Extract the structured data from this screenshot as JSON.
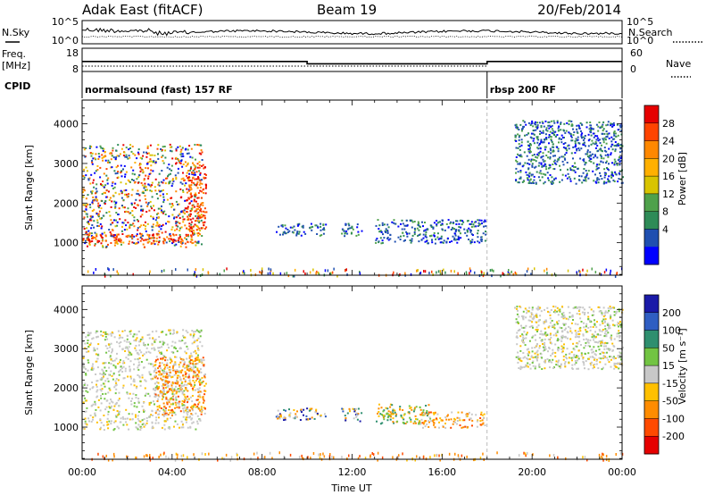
{
  "header": {
    "station": "Adak East (fitACF)",
    "beam": "Beam 19",
    "date": "20/Feb/2014"
  },
  "meta_panels": {
    "nsky_label": "N.Sky",
    "nsearch_label": "N.Search",
    "freq_label_1": "Freq.",
    "freq_label_2": "[MHz]",
    "nave_label": "Nave",
    "cpid_label": "CPID",
    "noise_ticks_left": [
      "10^5",
      "10^0"
    ],
    "noise_ticks_right": [
      "10^5",
      "10^0"
    ],
    "freq_ticks": [
      "18",
      "8"
    ],
    "nave_ticks": [
      "60",
      "0"
    ],
    "modes": [
      {
        "label": "normalsound (fast) 157 RF",
        "start": 0,
        "end": 18
      },
      {
        "label": "rbsp 200 RF",
        "start": 18,
        "end": 24
      }
    ],
    "freq_series": [
      {
        "start": 0,
        "end": 10,
        "value": 12.3
      },
      {
        "start": 10,
        "end": 18,
        "value": 11.3
      },
      {
        "start": 18,
        "end": 24,
        "value": 12.3
      }
    ]
  },
  "chart_data": [
    {
      "type": "scatter",
      "name": "power",
      "ylabel": "Slant Range [km]",
      "xlabel": "Time UT",
      "xlim": [
        0,
        24
      ],
      "ylim": [
        180,
        4600
      ],
      "x_ticks": [
        "00:00",
        "04:00",
        "08:00",
        "12:00",
        "16:00",
        "20:00",
        "00:00"
      ],
      "y_ticks": [
        1000,
        2000,
        3000,
        4000
      ],
      "colorbar": {
        "label": "Power [dB]",
        "ticks": [
          "28",
          "24",
          "20",
          "16",
          "12",
          "8",
          "4"
        ],
        "colors": [
          "#e60000",
          "#ff4400",
          "#ff8800",
          "#ffb000",
          "#d8c400",
          "#4fa14b",
          "#2e8b57",
          "#1f4fb0",
          "#0000ff"
        ]
      },
      "regions": [
        {
          "t0": 0.0,
          "t1": 5.3,
          "r0": 900,
          "r1": 3500,
          "level": "mixed"
        },
        {
          "t0": 0.0,
          "t1": 5.0,
          "r0": 1000,
          "r1": 1250,
          "level": "high"
        },
        {
          "t0": 4.6,
          "t1": 5.5,
          "r0": 1300,
          "r1": 3000,
          "level": "high"
        },
        {
          "t0": 8.6,
          "t1": 10.8,
          "r0": 1200,
          "r1": 1500,
          "level": "low"
        },
        {
          "t0": 11.5,
          "t1": 12.4,
          "r0": 1150,
          "r1": 1500,
          "level": "low"
        },
        {
          "t0": 13.0,
          "t1": 17.9,
          "r0": 1000,
          "r1": 1600,
          "level": "low"
        },
        {
          "t0": 19.2,
          "t1": 24.0,
          "r0": 2500,
          "r1": 4100,
          "level": "low"
        }
      ]
    },
    {
      "type": "scatter",
      "name": "velocity",
      "ylabel": "Slant Range [km]",
      "xlabel": "Time UT",
      "xlim": [
        0,
        24
      ],
      "ylim": [
        180,
        4600
      ],
      "x_ticks": [
        "00:00",
        "04:00",
        "08:00",
        "12:00",
        "16:00",
        "20:00",
        "00:00"
      ],
      "y_ticks": [
        1000,
        2000,
        3000,
        4000
      ],
      "colorbar": {
        "label": "Velocity [m s⁻¹]",
        "ticks": [
          "200",
          "100",
          "50",
          "15",
          "-15",
          "-50",
          "-100",
          "-200"
        ],
        "colors": [
          "#1a1aa8",
          "#2f5ec2",
          "#2f8f6f",
          "#72c443",
          "#c8c8c8",
          "#ffc000",
          "#ff8c00",
          "#ff4a00",
          "#e60000"
        ]
      },
      "regions": [
        {
          "t0": 0.0,
          "t1": 5.3,
          "r0": 950,
          "r1": 3500,
          "level": "grey"
        },
        {
          "t0": 3.2,
          "t1": 5.5,
          "r0": 1300,
          "r1": 2800,
          "level": "orange"
        },
        {
          "t0": 8.6,
          "t1": 10.8,
          "r0": 1200,
          "r1": 1500,
          "level": "mixed"
        },
        {
          "t0": 11.5,
          "t1": 12.4,
          "r0": 1150,
          "r1": 1500,
          "level": "mixed"
        },
        {
          "t0": 13.0,
          "t1": 15.5,
          "r0": 1100,
          "r1": 1600,
          "level": "green"
        },
        {
          "t0": 15.0,
          "t1": 17.9,
          "r0": 1000,
          "r1": 1400,
          "level": "orange"
        },
        {
          "t0": 19.2,
          "t1": 24.0,
          "r0": 2500,
          "r1": 4100,
          "level": "grey"
        }
      ]
    }
  ]
}
